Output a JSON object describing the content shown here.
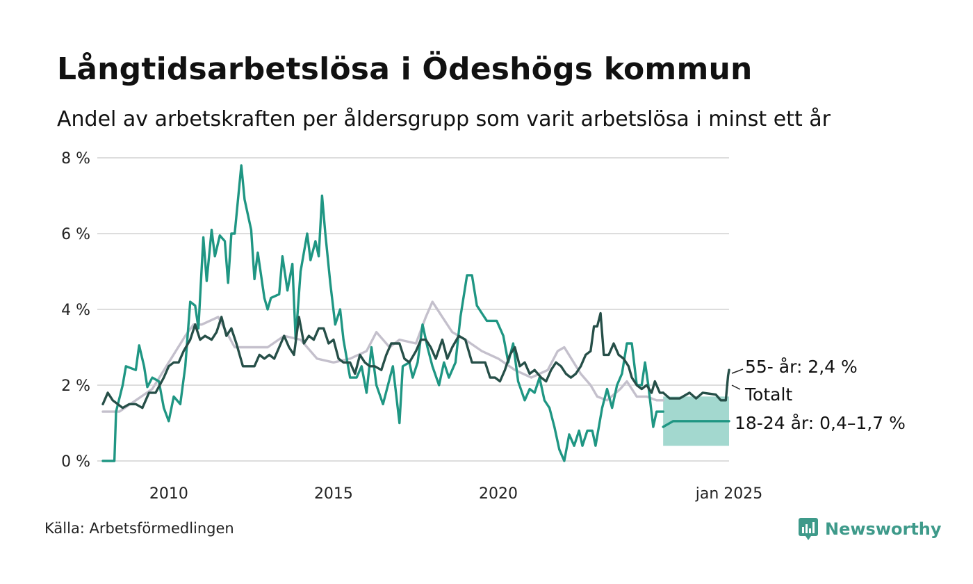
{
  "header": {
    "title": "Långtidsarbetslösa i Ödeshögs kommun",
    "subtitle": "Andel av arbetskraften per åldersgrupp som varit arbetslösa i minst ett år"
  },
  "footer": {
    "source": "Källa: Arbetsförmedlingen",
    "brand": "Newsworthy",
    "brand_icon": "newsworthy-logo-icon"
  },
  "colors": {
    "youth": "#1f9683",
    "senior": "#264f48",
    "total": "#c4c0cc",
    "band": "#a3d8cf",
    "grid": "#dddddd"
  },
  "chart_data": {
    "type": "line",
    "title": "Långtidsarbetslösa i Ödeshögs kommun",
    "subtitle": "Andel av arbetskraften per åldersgrupp som varit arbetslösa i minst ett år",
    "x_range": [
      2008.0,
      2025.0
    ],
    "ylim": [
      0,
      8
    ],
    "y_ticks": [
      0,
      2,
      4,
      6,
      8
    ],
    "y_tick_labels": [
      "0 %",
      "2 %",
      "4 %",
      "6 %",
      "8 %"
    ],
    "x_ticks": [
      2010,
      2015,
      2020,
      2025
    ],
    "x_tick_labels": [
      "2010",
      "2015",
      "2020",
      "jan 2025"
    ],
    "grid": true,
    "series": [
      {
        "name": "Totalt",
        "label": "Totalt",
        "points": [
          [
            2008.0,
            1.3
          ],
          [
            2008.5,
            1.3
          ],
          [
            2009.0,
            1.6
          ],
          [
            2009.5,
            1.9
          ],
          [
            2010.0,
            2.6
          ],
          [
            2010.5,
            3.3
          ],
          [
            2010.75,
            3.6
          ],
          [
            2011.0,
            3.6
          ],
          [
            2011.5,
            3.8
          ],
          [
            2012.0,
            3.0
          ],
          [
            2012.5,
            3.0
          ],
          [
            2013.0,
            3.0
          ],
          [
            2013.5,
            3.3
          ],
          [
            2014.0,
            3.2
          ],
          [
            2014.5,
            2.7
          ],
          [
            2015.0,
            2.6
          ],
          [
            2015.5,
            2.7
          ],
          [
            2016.0,
            2.9
          ],
          [
            2016.3,
            3.4
          ],
          [
            2016.7,
            3.0
          ],
          [
            2017.0,
            3.2
          ],
          [
            2017.5,
            3.1
          ],
          [
            2017.8,
            3.8
          ],
          [
            2018.0,
            4.2
          ],
          [
            2018.3,
            3.8
          ],
          [
            2018.6,
            3.4
          ],
          [
            2019.0,
            3.2
          ],
          [
            2019.5,
            2.9
          ],
          [
            2020.0,
            2.7
          ],
          [
            2020.5,
            2.4
          ],
          [
            2021.0,
            2.2
          ],
          [
            2021.5,
            2.4
          ],
          [
            2021.8,
            2.9
          ],
          [
            2022.0,
            3.0
          ],
          [
            2022.5,
            2.3
          ],
          [
            2022.8,
            2.0
          ],
          [
            2023.0,
            1.7
          ],
          [
            2023.3,
            1.6
          ],
          [
            2023.7,
            1.9
          ],
          [
            2023.9,
            2.1
          ],
          [
            2024.2,
            1.7
          ],
          [
            2024.5,
            1.7
          ],
          [
            2024.8,
            1.6
          ],
          [
            2025.0,
            1.6
          ]
        ]
      },
      {
        "name": "18-24 år",
        "label": "18-24 år: 0,4–1,7 %",
        "points": [
          [
            2008.0,
            0
          ],
          [
            2008.35,
            0
          ],
          [
            2008.4,
            1.3
          ],
          [
            2008.6,
            2.0
          ],
          [
            2008.7,
            2.5
          ],
          [
            2009.0,
            2.4
          ],
          [
            2009.1,
            3.05
          ],
          [
            2009.25,
            2.5
          ],
          [
            2009.35,
            1.95
          ],
          [
            2009.5,
            2.2
          ],
          [
            2009.7,
            2.1
          ],
          [
            2009.85,
            1.4
          ],
          [
            2010.0,
            1.05
          ],
          [
            2010.15,
            1.7
          ],
          [
            2010.35,
            1.5
          ],
          [
            2010.5,
            2.5
          ],
          [
            2010.65,
            4.2
          ],
          [
            2010.8,
            4.1
          ],
          [
            2010.9,
            3.5
          ],
          [
            2011.05,
            5.9
          ],
          [
            2011.15,
            4.75
          ],
          [
            2011.3,
            6.1
          ],
          [
            2011.4,
            5.4
          ],
          [
            2011.55,
            5.95
          ],
          [
            2011.7,
            5.8
          ],
          [
            2011.8,
            4.7
          ],
          [
            2011.9,
            6.0
          ],
          [
            2012.0,
            6.0
          ],
          [
            2012.2,
            7.8
          ],
          [
            2012.3,
            6.9
          ],
          [
            2012.5,
            6.1
          ],
          [
            2012.6,
            4.8
          ],
          [
            2012.7,
            5.5
          ],
          [
            2012.9,
            4.3
          ],
          [
            2013.0,
            4.0
          ],
          [
            2013.1,
            4.3
          ],
          [
            2013.35,
            4.4
          ],
          [
            2013.45,
            5.4
          ],
          [
            2013.6,
            4.5
          ],
          [
            2013.75,
            5.2
          ],
          [
            2013.85,
            3.2
          ],
          [
            2014.0,
            5.0
          ],
          [
            2014.2,
            6.0
          ],
          [
            2014.3,
            5.3
          ],
          [
            2014.45,
            5.8
          ],
          [
            2014.55,
            5.4
          ],
          [
            2014.65,
            7.0
          ],
          [
            2014.75,
            6.0
          ],
          [
            2014.9,
            4.7
          ],
          [
            2015.05,
            3.6
          ],
          [
            2015.2,
            4.0
          ],
          [
            2015.3,
            3.2
          ],
          [
            2015.5,
            2.2
          ],
          [
            2015.7,
            2.2
          ],
          [
            2015.85,
            2.5
          ],
          [
            2016.0,
            1.8
          ],
          [
            2016.15,
            3.0
          ],
          [
            2016.3,
            2.0
          ],
          [
            2016.5,
            1.5
          ],
          [
            2016.65,
            2.0
          ],
          [
            2016.8,
            2.5
          ],
          [
            2017.0,
            1.0
          ],
          [
            2017.1,
            2.5
          ],
          [
            2017.3,
            2.6
          ],
          [
            2017.4,
            2.2
          ],
          [
            2017.55,
            2.6
          ],
          [
            2017.7,
            3.6
          ],
          [
            2017.85,
            3.0
          ],
          [
            2018.0,
            2.5
          ],
          [
            2018.2,
            2.0
          ],
          [
            2018.35,
            2.6
          ],
          [
            2018.5,
            2.2
          ],
          [
            2018.7,
            2.6
          ],
          [
            2018.85,
            3.8
          ],
          [
            2019.05,
            4.9
          ],
          [
            2019.2,
            4.9
          ],
          [
            2019.35,
            4.1
          ],
          [
            2019.5,
            3.9
          ],
          [
            2019.65,
            3.7
          ],
          [
            2019.85,
            3.7
          ],
          [
            2019.95,
            3.7
          ],
          [
            2020.15,
            3.3
          ],
          [
            2020.3,
            2.6
          ],
          [
            2020.45,
            3.1
          ],
          [
            2020.6,
            2.1
          ],
          [
            2020.8,
            1.6
          ],
          [
            2020.95,
            1.9
          ],
          [
            2021.1,
            1.8
          ],
          [
            2021.25,
            2.2
          ],
          [
            2021.4,
            1.6
          ],
          [
            2021.55,
            1.4
          ],
          [
            2021.7,
            0.9
          ],
          [
            2021.85,
            0.3
          ],
          [
            2022.0,
            0.0
          ],
          [
            2022.15,
            0.7
          ],
          [
            2022.3,
            0.4
          ],
          [
            2022.45,
            0.8
          ],
          [
            2022.55,
            0.4
          ],
          [
            2022.7,
            0.8
          ],
          [
            2022.85,
            0.8
          ],
          [
            2022.95,
            0.4
          ],
          [
            2023.15,
            1.4
          ],
          [
            2023.3,
            1.9
          ],
          [
            2023.45,
            1.4
          ],
          [
            2023.6,
            2.0
          ],
          [
            2023.75,
            2.3
          ],
          [
            2023.9,
            3.1
          ],
          [
            2024.05,
            3.1
          ],
          [
            2024.2,
            2.0
          ],
          [
            2024.35,
            2.0
          ],
          [
            2024.45,
            2.6
          ],
          [
            2024.55,
            2.0
          ],
          [
            2024.7,
            0.9
          ],
          [
            2024.8,
            1.3
          ],
          [
            2024.95,
            1.3
          ],
          [
            2025.0,
            1.3
          ]
        ]
      },
      {
        "name": "55- år",
        "label": "55- år: 2,4 %",
        "points": [
          [
            2008.0,
            1.5
          ],
          [
            2008.15,
            1.8
          ],
          [
            2008.3,
            1.6
          ],
          [
            2008.6,
            1.4
          ],
          [
            2008.8,
            1.5
          ],
          [
            2009.0,
            1.5
          ],
          [
            2009.2,
            1.4
          ],
          [
            2009.4,
            1.8
          ],
          [
            2009.6,
            1.8
          ],
          [
            2009.85,
            2.2
          ],
          [
            2010.0,
            2.5
          ],
          [
            2010.15,
            2.6
          ],
          [
            2010.3,
            2.6
          ],
          [
            2010.45,
            2.9
          ],
          [
            2010.65,
            3.2
          ],
          [
            2010.8,
            3.6
          ],
          [
            2010.95,
            3.2
          ],
          [
            2011.1,
            3.3
          ],
          [
            2011.3,
            3.2
          ],
          [
            2011.45,
            3.4
          ],
          [
            2011.6,
            3.8
          ],
          [
            2011.75,
            3.3
          ],
          [
            2011.9,
            3.5
          ],
          [
            2012.05,
            3.1
          ],
          [
            2012.25,
            2.5
          ],
          [
            2012.45,
            2.5
          ],
          [
            2012.6,
            2.5
          ],
          [
            2012.75,
            2.8
          ],
          [
            2012.9,
            2.7
          ],
          [
            2013.05,
            2.8
          ],
          [
            2013.2,
            2.7
          ],
          [
            2013.35,
            3.0
          ],
          [
            2013.5,
            3.3
          ],
          [
            2013.65,
            3.0
          ],
          [
            2013.8,
            2.8
          ],
          [
            2013.95,
            3.8
          ],
          [
            2014.1,
            3.1
          ],
          [
            2014.25,
            3.3
          ],
          [
            2014.4,
            3.2
          ],
          [
            2014.55,
            3.5
          ],
          [
            2014.7,
            3.5
          ],
          [
            2014.85,
            3.1
          ],
          [
            2015.0,
            3.2
          ],
          [
            2015.15,
            2.7
          ],
          [
            2015.3,
            2.6
          ],
          [
            2015.5,
            2.6
          ],
          [
            2015.65,
            2.3
          ],
          [
            2015.8,
            2.8
          ],
          [
            2015.95,
            2.6
          ],
          [
            2016.1,
            2.5
          ],
          [
            2016.25,
            2.5
          ],
          [
            2016.45,
            2.4
          ],
          [
            2016.6,
            2.8
          ],
          [
            2016.75,
            3.1
          ],
          [
            2017.0,
            3.1
          ],
          [
            2017.15,
            2.7
          ],
          [
            2017.3,
            2.6
          ],
          [
            2017.5,
            2.9
          ],
          [
            2017.65,
            3.2
          ],
          [
            2017.8,
            3.2
          ],
          [
            2017.95,
            3.0
          ],
          [
            2018.1,
            2.7
          ],
          [
            2018.3,
            3.2
          ],
          [
            2018.45,
            2.7
          ],
          [
            2018.6,
            3.0
          ],
          [
            2018.8,
            3.3
          ],
          [
            2019.0,
            3.2
          ],
          [
            2019.2,
            2.6
          ],
          [
            2019.4,
            2.6
          ],
          [
            2019.6,
            2.6
          ],
          [
            2019.75,
            2.2
          ],
          [
            2019.9,
            2.2
          ],
          [
            2020.05,
            2.1
          ],
          [
            2020.2,
            2.4
          ],
          [
            2020.35,
            2.8
          ],
          [
            2020.5,
            3.0
          ],
          [
            2020.65,
            2.5
          ],
          [
            2020.8,
            2.6
          ],
          [
            2020.95,
            2.3
          ],
          [
            2021.1,
            2.4
          ],
          [
            2021.3,
            2.2
          ],
          [
            2021.45,
            2.1
          ],
          [
            2021.6,
            2.4
          ],
          [
            2021.75,
            2.6
          ],
          [
            2021.9,
            2.5
          ],
          [
            2022.05,
            2.3
          ],
          [
            2022.2,
            2.2
          ],
          [
            2022.35,
            2.3
          ],
          [
            2022.5,
            2.5
          ],
          [
            2022.65,
            2.8
          ],
          [
            2022.8,
            2.9
          ],
          [
            2022.9,
            3.55
          ],
          [
            2023.0,
            3.55
          ],
          [
            2023.1,
            3.9
          ],
          [
            2023.2,
            2.8
          ],
          [
            2023.35,
            2.8
          ],
          [
            2023.5,
            3.1
          ],
          [
            2023.65,
            2.8
          ],
          [
            2023.8,
            2.7
          ],
          [
            2023.95,
            2.5
          ],
          [
            2024.05,
            2.2
          ],
          [
            2024.2,
            2.0
          ],
          [
            2024.35,
            1.9
          ],
          [
            2024.5,
            2.0
          ],
          [
            2024.65,
            1.8
          ],
          [
            2024.75,
            2.1
          ],
          [
            2024.9,
            1.8
          ],
          [
            2025.0,
            1.8
          ]
        ]
      },
      {
        "name": "18-24 år (prognos)",
        "points": [
          [
            2025.0,
            0.9
          ],
          [
            2025.3,
            1.05
          ],
          [
            2025.8,
            1.05
          ],
          [
            2026.3,
            1.05
          ],
          [
            2026.8,
            1.05
          ],
          [
            2027.0,
            1.05
          ]
        ]
      },
      {
        "name": "55- år (prognos)",
        "points": [
          [
            2025.0,
            1.8
          ],
          [
            2025.2,
            1.65
          ],
          [
            2025.5,
            1.65
          ],
          [
            2025.8,
            1.8
          ],
          [
            2026.0,
            1.65
          ],
          [
            2026.2,
            1.8
          ],
          [
            2026.6,
            1.75
          ],
          [
            2026.75,
            1.6
          ],
          [
            2026.9,
            1.6
          ],
          [
            2026.97,
            2.25
          ],
          [
            2027.0,
            2.4
          ]
        ]
      }
    ],
    "band": {
      "name": "18-24 år intervall",
      "x": [
        2025.0,
        2027.0
      ],
      "low": 0.4,
      "high": 1.7
    }
  }
}
